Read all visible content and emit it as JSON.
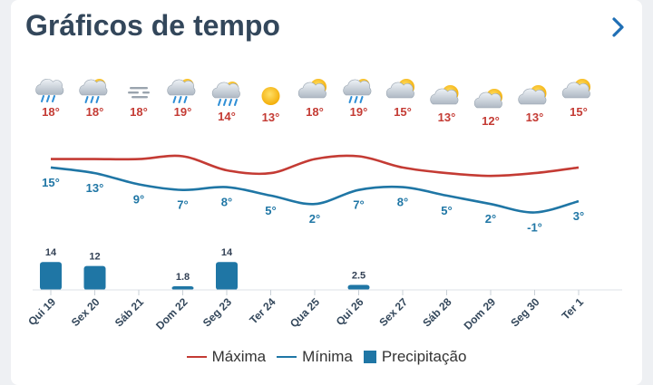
{
  "header": {
    "title": "Gráficos de tempo",
    "next_icon": "chevron-right-icon"
  },
  "legend": [
    {
      "label": "Máxima",
      "color": "#c43b34",
      "kind": "line"
    },
    {
      "label": "Mínima",
      "color": "#1f76a5",
      "kind": "line"
    },
    {
      "label": "Precipitação",
      "color": "#1f76a5",
      "kind": "bar"
    }
  ],
  "chart_data": {
    "type": "line",
    "categories": [
      "Qui 19",
      "Sex 20",
      "Sáb 21",
      "Dom 22",
      "Seg 23",
      "Ter 24",
      "Qua 25",
      "Qui 26",
      "Sex 27",
      "Sáb 28",
      "Dom 29",
      "Seg 30",
      "Ter 1"
    ],
    "icons": [
      "rain-cloud-icon",
      "partly-sunny-rain-icon",
      "fog-icon",
      "partly-sunny-rain-icon",
      "partly-sunny-heavy-rain-icon",
      "sun-icon",
      "partly-cloudy-icon",
      "partly-sunny-rain-icon",
      "partly-cloudy-icon",
      "partly-cloudy-icon",
      "partly-cloudy-icon",
      "partly-cloudy-icon",
      "partly-cloudy-icon"
    ],
    "series": [
      {
        "name": "Máxima",
        "color": "#c43b34",
        "values": [
          18,
          18,
          18,
          19,
          14,
          13,
          18,
          19,
          15,
          13,
          12,
          13,
          15
        ]
      },
      {
        "name": "Mínima",
        "color": "#1f76a5",
        "values": [
          15,
          13,
          9,
          7,
          8,
          5,
          2,
          7,
          8,
          5,
          2,
          -1,
          3
        ]
      },
      {
        "name": "Precipitação",
        "color": "#1f76a5",
        "values": [
          14,
          12,
          0,
          1.8,
          14,
          0,
          0,
          2.5,
          0,
          0,
          0,
          0,
          0
        ]
      }
    ],
    "max_labels": [
      "18°",
      "18°",
      "18°",
      "19°",
      "14°",
      "13°",
      "18°",
      "19°",
      "15°",
      "13°",
      "12°",
      "13°",
      "15°"
    ],
    "min_labels": [
      "15°",
      "13°",
      "9°",
      "7°",
      "8°",
      "5°",
      "2°",
      "7°",
      "8°",
      "5°",
      "2°",
      "-1°",
      "3°"
    ],
    "precip_labels": [
      "14",
      "12",
      "",
      "1.8",
      "14",
      "",
      "",
      "2.5",
      "",
      "",
      "",
      "",
      ""
    ],
    "grid": false,
    "legend_position": "bottom"
  }
}
